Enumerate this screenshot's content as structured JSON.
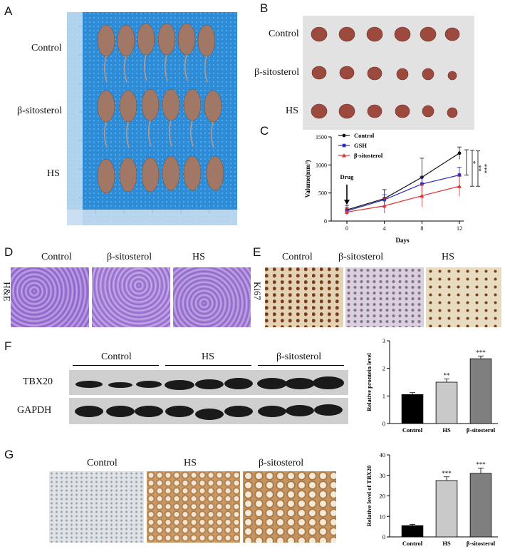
{
  "panels": {
    "A": "A",
    "B": "B",
    "C": "C",
    "D": "D",
    "E": "E",
    "F": "F",
    "G": "G"
  },
  "panelA": {
    "rows": [
      "Control",
      "β-sitosterol",
      "HS"
    ]
  },
  "panelB": {
    "rows": [
      "Control",
      "β-sitosterol",
      "HS"
    ]
  },
  "panelD": {
    "side_label": "H&E",
    "columns": [
      "Control",
      "β-sitosterol",
      "HS"
    ]
  },
  "panelE": {
    "side_label": "Ki67",
    "columns": [
      "Control",
      "β-sitosterol",
      "HS"
    ]
  },
  "panelF": {
    "groups": [
      "Control",
      "HS",
      "β-sitosterol"
    ],
    "rows": [
      "TBX20",
      "GAPDH"
    ]
  },
  "panelG": {
    "columns": [
      "Control",
      "HS",
      "β-sitosterol"
    ]
  },
  "colors": {
    "control": "#111111",
    "gsh": "#2b2bbf",
    "sitosterol": "#e03030",
    "micro_he": "#a77ad2",
    "micro_ihc": "#e6d3b2",
    "bar_control": "#000000",
    "bar_hs": "#c9c9c9",
    "bar_sito": "#7f7f7f"
  },
  "chart_data": [
    {
      "type": "line",
      "panel": "C",
      "xlabel": "Days",
      "ylabel": "Valume(mm³)",
      "x": [
        0,
        4,
        8,
        12
      ],
      "xlim": [
        0,
        12
      ],
      "ylim": [
        0,
        1500
      ],
      "yticks": [
        0,
        500,
        1000,
        1500
      ],
      "series": [
        {
          "name": "Control",
          "values": [
            200,
            400,
            780,
            1210
          ],
          "errors": [
            80,
            160,
            340,
            110
          ],
          "marker": "circle"
        },
        {
          "name": "GSH",
          "values": [
            180,
            380,
            660,
            820
          ],
          "errors": [
            60,
            90,
            130,
            140
          ],
          "marker": "square"
        },
        {
          "name": "β-sitosterol",
          "values": [
            160,
            270,
            450,
            620
          ],
          "errors": [
            60,
            130,
            200,
            180
          ],
          "marker": "triangle"
        }
      ],
      "annotations": {
        "arrow": "Drug",
        "sig": [
          "*",
          "**",
          "***"
        ]
      },
      "legend": "top-left"
    },
    {
      "type": "bar",
      "panel": "F",
      "ylabel": "Relative prontein level",
      "categories": [
        "Control",
        "HS",
        "β-sitosterol"
      ],
      "values": [
        1.05,
        1.5,
        2.35
      ],
      "errors": [
        0.07,
        0.12,
        0.1
      ],
      "sig": [
        "",
        "**",
        "***"
      ],
      "ylim": [
        0,
        3
      ],
      "yticks": [
        0,
        1,
        2,
        3
      ]
    },
    {
      "type": "bar",
      "panel": "G",
      "ylabel": "Relative level of TBX20",
      "categories": [
        "Control",
        "HS",
        "β-sitosterol"
      ],
      "values": [
        5.5,
        27.5,
        31
      ],
      "errors": [
        0.6,
        1.8,
        2.6
      ],
      "sig": [
        "",
        "***",
        "***"
      ],
      "ylim": [
        0,
        40
      ],
      "yticks": [
        0,
        10,
        20,
        30,
        40
      ]
    }
  ]
}
